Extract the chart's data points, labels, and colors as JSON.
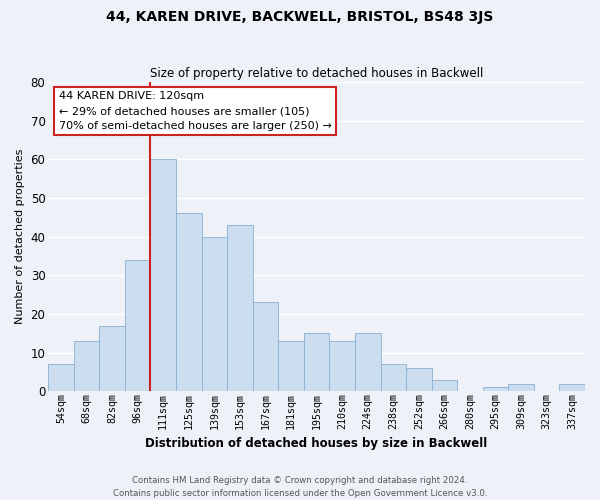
{
  "title": "44, KAREN DRIVE, BACKWELL, BRISTOL, BS48 3JS",
  "subtitle": "Size of property relative to detached houses in Backwell",
  "xlabel": "Distribution of detached houses by size in Backwell",
  "ylabel": "Number of detached properties",
  "bar_labels": [
    "54sqm",
    "68sqm",
    "82sqm",
    "96sqm",
    "111sqm",
    "125sqm",
    "139sqm",
    "153sqm",
    "167sqm",
    "181sqm",
    "195sqm",
    "210sqm",
    "224sqm",
    "238sqm",
    "252sqm",
    "266sqm",
    "280sqm",
    "295sqm",
    "309sqm",
    "323sqm",
    "337sqm"
  ],
  "bar_values": [
    7,
    13,
    17,
    34,
    60,
    46,
    40,
    43,
    23,
    13,
    15,
    13,
    15,
    7,
    6,
    3,
    0,
    1,
    2,
    0,
    2
  ],
  "bar_color": "#ccddf0",
  "bar_edge_color": "#8ab0d0",
  "highlight_line_color": "#cc2222",
  "highlight_index": 4,
  "ylim": [
    0,
    80
  ],
  "yticks": [
    0,
    10,
    20,
    30,
    40,
    50,
    60,
    70,
    80
  ],
  "annotation_text": "44 KAREN DRIVE: 120sqm\n← 29% of detached houses are smaller (105)\n70% of semi-detached houses are larger (250) →",
  "annotation_box_facecolor": "#ffffff",
  "annotation_box_edgecolor": "#cc2222",
  "bg_color": "#eef2f8",
  "grid_color": "#ffffff",
  "footer_line1": "Contains HM Land Registry data © Crown copyright and database right 2024.",
  "footer_line2": "Contains public sector information licensed under the Open Government Licence v3.0."
}
